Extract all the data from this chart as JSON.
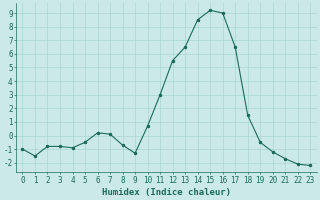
{
  "x": [
    0,
    1,
    2,
    3,
    4,
    5,
    6,
    7,
    8,
    9,
    10,
    11,
    12,
    13,
    14,
    15,
    16,
    17,
    18,
    19,
    20,
    21,
    22,
    23
  ],
  "y": [
    -1,
    -1.5,
    -0.8,
    -0.8,
    -0.9,
    -0.5,
    0.2,
    0.1,
    -0.7,
    -1.3,
    0.7,
    3.0,
    5.5,
    6.5,
    8.5,
    9.2,
    9.0,
    6.5,
    1.5,
    -0.5,
    -1.2,
    -1.7,
    -2.1,
    -2.2
  ],
  "line_color": "#1a6b5a",
  "marker": ".",
  "marker_size": 3,
  "bg_color": "#cce9e9",
  "grid_color": "#aad4d4",
  "xlabel": "Humidex (Indice chaleur)",
  "xlim": [
    -0.5,
    23.5
  ],
  "ylim": [
    -2.7,
    9.7
  ],
  "yticks": [
    -2,
    -1,
    0,
    1,
    2,
    3,
    4,
    5,
    6,
    7,
    8,
    9
  ],
  "xticks": [
    0,
    1,
    2,
    3,
    4,
    5,
    6,
    7,
    8,
    9,
    10,
    11,
    12,
    13,
    14,
    15,
    16,
    17,
    18,
    19,
    20,
    21,
    22,
    23
  ],
  "xlabel_fontsize": 6.5,
  "tick_fontsize": 5.5,
  "line_color_hex": "#1a6b5a",
  "tick_color": "#1a6b5a",
  "axis_color": "#1a6b5a"
}
